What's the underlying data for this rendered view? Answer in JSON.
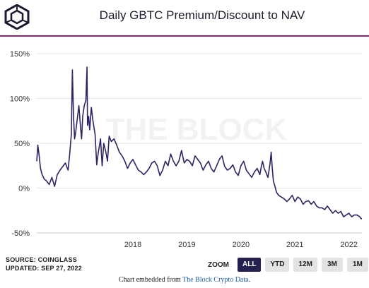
{
  "header": {
    "title": "Daily GBTC Premium/Discount to NAV",
    "logo_icon": "the-block-cube-icon"
  },
  "watermark": "THE BLOCK",
  "footer": {
    "source": "SOURCE: COINGLASS",
    "updated": "UPDATED: SEP 27, 2022",
    "embed_prefix": "Chart embedded from ",
    "embed_link": "The Block Crypto Data",
    "embed_suffix": "."
  },
  "zoom": {
    "label": "ZOOM",
    "options": [
      "ALL",
      "YTD",
      "12M",
      "3M",
      "1M"
    ],
    "selected": "ALL"
  },
  "colors": {
    "line": "#2b2563",
    "accent": "#7d2a6e",
    "active_button": "#24204f"
  },
  "chart_data": {
    "type": "line",
    "title": "Daily GBTC Premium/Discount to NAV",
    "xlabel": "",
    "ylabel": "",
    "y_unit": "%",
    "ylim": [
      -50,
      150
    ],
    "y_ticks": [
      "150%",
      "100%",
      "50%",
      "0%",
      "-50%"
    ],
    "y_tick_values": [
      150,
      100,
      50,
      0,
      -50
    ],
    "x_ticks": [
      "2018",
      "2019",
      "2020",
      "2021",
      "2022"
    ],
    "x_tick_values": [
      2018,
      2019,
      2020,
      2021,
      2022
    ],
    "xlim": [
      2016.72,
      2022.74
    ],
    "grid": "horizontal",
    "series": [
      {
        "x": [
          2016.72,
          2016.74,
          2016.76,
          2016.79,
          2016.82,
          2016.86,
          2016.9,
          2016.95,
          2017.0,
          2017.05,
          2017.1,
          2017.15,
          2017.2,
          2017.25,
          2017.3,
          2017.33,
          2017.36,
          2017.38,
          2017.4,
          2017.42,
          2017.44,
          2017.46,
          2017.5,
          2017.53,
          2017.55,
          2017.57,
          2017.6,
          2017.63,
          2017.65,
          2017.66,
          2017.68,
          2017.7,
          2017.73,
          2017.76,
          2017.8,
          2017.83,
          2017.86,
          2017.9,
          2017.93,
          2017.96,
          2018.0,
          2018.03,
          2018.06,
          2018.1,
          2018.15,
          2018.2,
          2018.25,
          2018.3,
          2018.35,
          2018.4,
          2018.45,
          2018.5,
          2018.55,
          2018.6,
          2018.65,
          2018.7,
          2018.75,
          2018.8,
          2018.85,
          2018.9,
          2018.95,
          2019.0,
          2019.05,
          2019.1,
          2019.15,
          2019.2,
          2019.25,
          2019.3,
          2019.35,
          2019.4,
          2019.45,
          2019.5,
          2019.55,
          2019.6,
          2019.65,
          2019.7,
          2019.75,
          2019.8,
          2019.85,
          2019.9,
          2019.95,
          2020.0,
          2020.05,
          2020.1,
          2020.15,
          2020.2,
          2020.25,
          2020.3,
          2020.35,
          2020.4,
          2020.45,
          2020.5,
          2020.55,
          2020.6,
          2020.65,
          2020.7,
          2020.75,
          2020.8,
          2020.85,
          2020.88,
          2020.9,
          2020.93,
          2020.96,
          2020.98,
          2021.0,
          2021.02,
          2021.04,
          2021.06,
          2021.08,
          2021.1,
          2021.13,
          2021.16,
          2021.2,
          2021.25,
          2021.3,
          2021.35,
          2021.4,
          2021.45,
          2021.5,
          2021.55,
          2021.6,
          2021.65,
          2021.7,
          2021.75,
          2021.8,
          2021.85,
          2021.9,
          2021.95,
          2022.0,
          2022.05,
          2022.1,
          2022.15,
          2022.2,
          2022.25,
          2022.3,
          2022.35,
          2022.4,
          2022.45,
          2022.5,
          2022.55,
          2022.6,
          2022.65,
          2022.7,
          2022.72,
          2022.74
        ],
        "y": [
          30,
          48,
          38,
          22,
          15,
          10,
          8,
          4,
          12,
          2,
          15,
          20,
          24,
          28,
          20,
          38,
          60,
          132,
          80,
          55,
          62,
          72,
          92,
          68,
          55,
          80,
          92,
          98,
          135,
          70,
          80,
          65,
          90,
          75,
          60,
          26,
          40,
          55,
          25,
          50,
          40,
          30,
          58,
          52,
          55,
          48,
          40,
          36,
          30,
          22,
          28,
          32,
          26,
          20,
          18,
          15,
          18,
          22,
          28,
          30,
          25,
          14,
          20,
          30,
          25,
          38,
          30,
          25,
          30,
          42,
          28,
          32,
          30,
          25,
          36,
          32,
          28,
          20,
          26,
          30,
          22,
          18,
          25,
          32,
          36,
          24,
          20,
          22,
          26,
          18,
          14,
          25,
          30,
          20,
          16,
          12,
          18,
          22,
          15,
          25,
          30,
          22,
          18,
          15,
          12,
          20,
          28,
          40,
          22,
          8,
          2,
          -5,
          -8,
          -10,
          -12,
          -15,
          -12,
          -8,
          -15,
          -10,
          -12,
          -18,
          -15,
          -14,
          -18,
          -15,
          -20,
          -22,
          -22,
          -24,
          -20,
          -24,
          -28,
          -25,
          -28,
          -26,
          -32,
          -30,
          -28,
          -32,
          -30,
          -30,
          -32,
          -34,
          -34
        ]
      }
    ]
  }
}
